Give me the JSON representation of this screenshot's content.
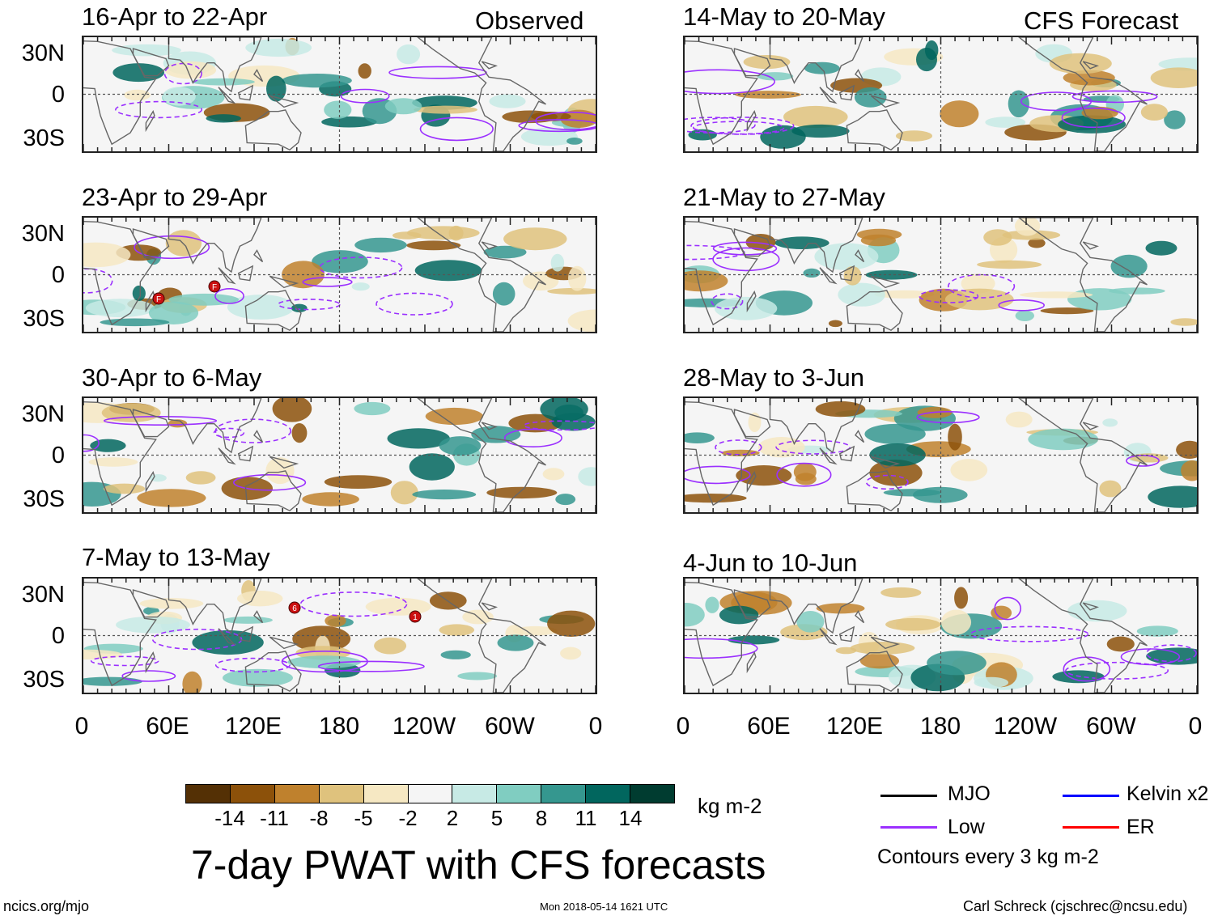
{
  "headers": {
    "left": "Observed",
    "right": "CFS Forecast"
  },
  "panels_observed": [
    {
      "title": "16-Apr to 22-Apr"
    },
    {
      "title": "23-Apr to 29-Apr"
    },
    {
      "title": "30-Apr to 6-May"
    },
    {
      "title": "7-May to 13-May"
    }
  ],
  "panels_forecast": [
    {
      "title": "14-May to 20-May"
    },
    {
      "title": "21-May to 27-May"
    },
    {
      "title": "28-May to 3-Jun"
    },
    {
      "title": "4-Jun to 10-Jun"
    }
  ],
  "lat_labels": [
    "30N",
    "0",
    "30S"
  ],
  "lon_labels": [
    "0",
    "60E",
    "120E",
    "180",
    "120W",
    "60W",
    "0"
  ],
  "storm_markers": [
    "F",
    "F",
    "6",
    "1"
  ],
  "colorbar": {
    "labels": [
      "-14",
      "-11",
      "-8",
      "-5",
      "-2",
      "2",
      "5",
      "8",
      "11",
      "14"
    ],
    "units": "kg m-2",
    "colors": [
      "#543005",
      "#8c510a",
      "#bf812d",
      "#dfc27d",
      "#f6e8c3",
      "#f5f5f5",
      "#c7eae5",
      "#80cdc1",
      "#35978f",
      "#01665e",
      "#003c30"
    ]
  },
  "legend": {
    "items": [
      {
        "label": "MJO",
        "color": "#000000"
      },
      {
        "label": "Kelvin x2",
        "color": "#0000ff"
      },
      {
        "label": "Low",
        "color": "#9b30ff"
      },
      {
        "label": "ER",
        "color": "#ff0000"
      }
    ],
    "note": "Contours every 3 kg m-2"
  },
  "main_title": "7-day PWAT with CFS forecasts",
  "footer": {
    "left": "ncics.org/mjo",
    "center": "Mon 2018-05-14 1621 UTC",
    "right": "Carl Schreck (cjschrec@ncsu.edu)"
  }
}
